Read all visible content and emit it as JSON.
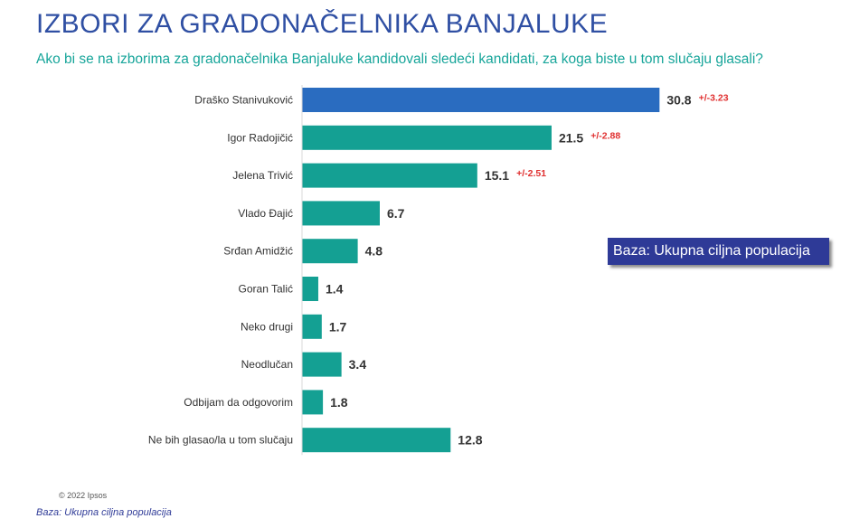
{
  "title": "IZBORI ZA GRADONAČELNIKA BANJALUKE",
  "subtitle": "Ako bi se na izborima za gradonačelnika Banjaluke kandidovali sledeći kandidati, za koga biste u tom slučaju glasali?",
  "base_box": "Baza: Ukupna ciljna populacija",
  "copyright": "© 2022 Ipsos",
  "footnote": "Baza: Ukupna ciljna populacija",
  "colors": {
    "highlight": "#2a6cc0",
    "bar": "#14a093",
    "margin": "#e03030",
    "title": "#2f4fa3",
    "subtitle": "#17a59a"
  },
  "chart_data": {
    "type": "bar",
    "orientation": "horizontal",
    "categories": [
      "Draško Stanivuković",
      "Igor Radojičić",
      "Jelena Trivić",
      "Vlado Đajić",
      "Srđan Amidžić",
      "Goran Talić",
      "Neko drugi",
      "Neodlučan",
      "Odbijam da odgovorim",
      "Ne bih glasao/la u tom slučaju"
    ],
    "values": [
      30.8,
      21.5,
      15.1,
      6.7,
      4.8,
      1.4,
      1.7,
      3.4,
      1.8,
      12.8
    ],
    "value_labels": [
      "30.8",
      "21.5",
      "15.1",
      "6.7",
      "4.8",
      "1.4",
      "1.7",
      "3.4",
      "1.8",
      "12.8"
    ],
    "error_labels": [
      "+/-3.23",
      "+/-2.88",
      "+/-2.51",
      "",
      "",
      "",
      "",
      "",
      "",
      ""
    ],
    "highlight_index": 0,
    "xlim": [
      0,
      33.5
    ],
    "grid": false,
    "legend": "none"
  }
}
